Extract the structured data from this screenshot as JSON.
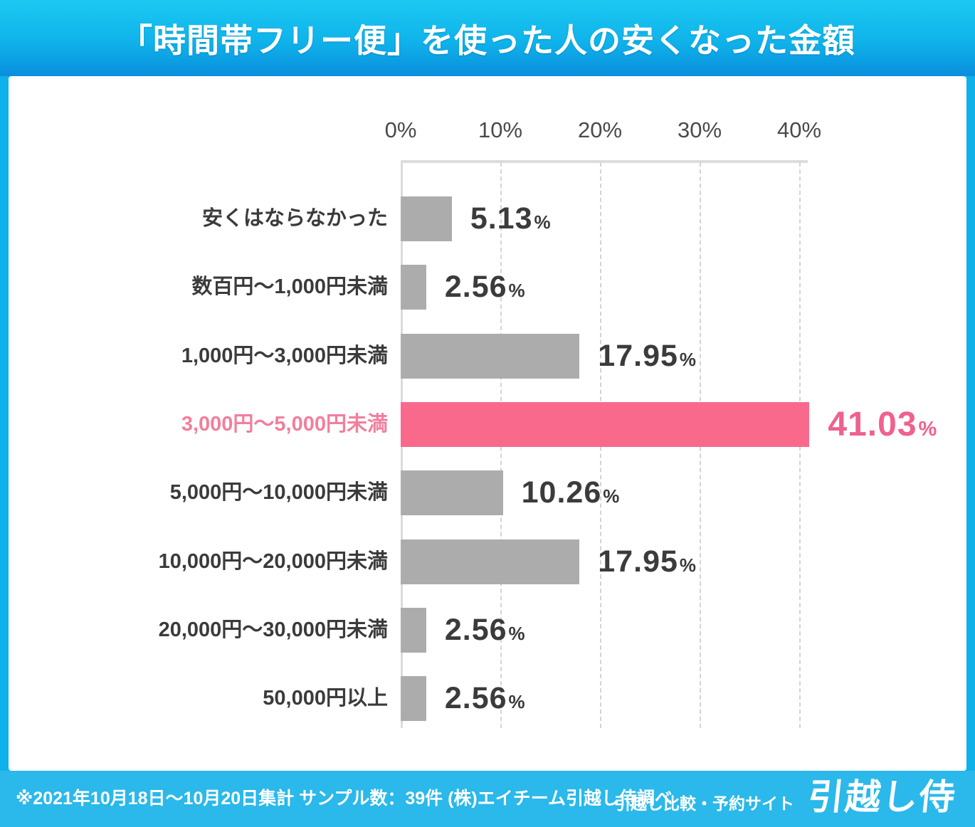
{
  "header": {
    "title": "「時間帯フリー便」を使った人の安くなった金額"
  },
  "chart_data": {
    "type": "bar",
    "orientation": "horizontal",
    "title": "「時間帯フリー便」を使った人の安くなった金額",
    "categories": [
      "安くはならなかった",
      "数百円〜1,000円未満",
      "1,000円〜3,000円未満",
      "3,000円〜5,000円未満",
      "5,000円〜10,000円未満",
      "10,000円〜20,000円未満",
      "20,000円〜30,000円未満",
      "50,000円以上"
    ],
    "values": [
      5.13,
      2.56,
      17.95,
      41.03,
      10.26,
      17.95,
      2.56,
      2.56
    ],
    "value_labels": [
      "5.13",
      "2.56",
      "17.95",
      "41.03",
      "10.26",
      "17.95",
      "2.56",
      "2.56"
    ],
    "unit": "%",
    "highlight_index": 3,
    "x_ticks": [
      "0%",
      "10%",
      "20%",
      "30%",
      "40%"
    ],
    "xlim": [
      0,
      41
    ],
    "grid": "dashed-vertical",
    "legend": "none",
    "colors": {
      "bar_default": "#acacac",
      "bar_highlight": "#f9698c",
      "label_highlight": "#f27e9d",
      "value_highlight": "#f0618d",
      "text_dark": "#3b3b3b"
    }
  },
  "footer": {
    "note": "※2021年10月18日〜10月20日集計 サンプル数：39件 (株)エイチーム引越し侍調べ",
    "site_tagline": "引越し比較・予約サイト",
    "site_logo": "引越し侍"
  }
}
